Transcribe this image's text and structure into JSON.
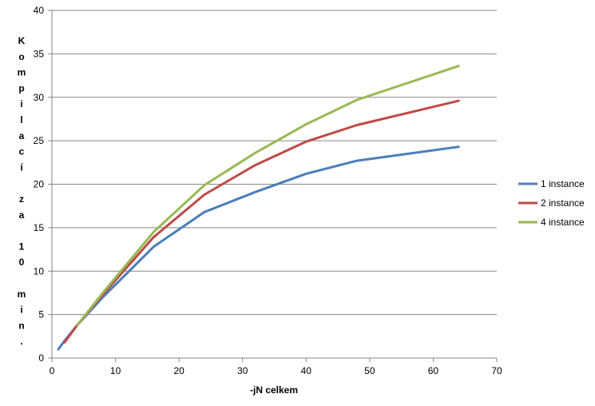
{
  "chart_data": {
    "type": "line",
    "xlabel": "-jN celkem",
    "ylabel": "Kompilací za 10 min.",
    "xlim": [
      0,
      70
    ],
    "ylim": [
      0,
      40
    ],
    "x_ticks": [
      "0",
      "10",
      "20",
      "30",
      "40",
      "50",
      "60",
      "70"
    ],
    "y_ticks": [
      "0",
      "5",
      "10",
      "15",
      "20",
      "25",
      "30",
      "35",
      "40"
    ],
    "grid": "horizontal",
    "legend_position": "right",
    "series": [
      {
        "name": "1 instance",
        "color": "#4a7ebb",
        "x": [
          1,
          2,
          4,
          8,
          16,
          24,
          32,
          40,
          48,
          64
        ],
        "y": [
          1.0,
          2.0,
          3.8,
          7.0,
          12.8,
          16.8,
          19.1,
          21.2,
          22.7,
          24.3
        ]
      },
      {
        "name": "2 instance",
        "color": "#be4b48",
        "x": [
          2,
          4,
          8,
          16,
          24,
          32,
          40,
          48,
          64
        ],
        "y": [
          1.8,
          3.8,
          7.3,
          13.9,
          18.8,
          22.2,
          24.9,
          26.8,
          29.6
        ]
      },
      {
        "name": "4 instance",
        "color": "#98b954",
        "x": [
          4,
          8,
          16,
          24,
          32,
          40,
          48,
          64
        ],
        "y": [
          3.8,
          7.5,
          14.5,
          19.9,
          23.6,
          26.9,
          29.7,
          33.6
        ]
      }
    ]
  }
}
